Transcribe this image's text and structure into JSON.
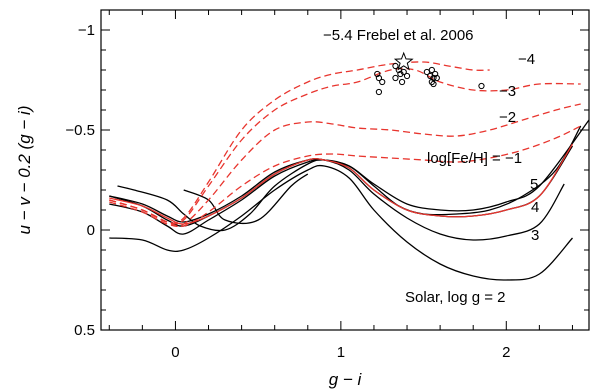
{
  "chart_data": {
    "type": "line",
    "title": "",
    "xlabel": "g − i",
    "ylabel": "u − v − 0.2 (g − i)",
    "xlim": [
      -0.45,
      2.5
    ],
    "ylim": [
      0.5,
      -1.1
    ],
    "y_inverted": true,
    "grid": false,
    "legend": "none",
    "x_ticks": [
      {
        "value": 0,
        "label": "0"
      },
      {
        "value": 1,
        "label": "1"
      },
      {
        "value": 2,
        "label": "2"
      }
    ],
    "y_ticks": [
      {
        "value": -1,
        "label": "−1"
      },
      {
        "value": -0.5,
        "label": "−0.5"
      },
      {
        "value": 0,
        "label": "0"
      },
      {
        "value": 0.5,
        "label": "0.5"
      }
    ],
    "colors": {
      "solar": "#000000",
      "metal_poor": "#e8352e",
      "stars": "#000000"
    },
    "series": [
      {
        "group": "solar",
        "style": "solid",
        "color": "#000000",
        "x": [
          -0.4,
          -0.2,
          -0.05,
          0.05,
          0.2,
          0.4,
          0.6,
          0.8,
          0.9,
          1.05,
          1.2,
          1.4,
          1.6,
          1.8,
          2.0,
          2.2,
          2.4
        ],
        "y": [
          0.04,
          0.05,
          0.1,
          0.1,
          0.04,
          -0.07,
          -0.2,
          -0.3,
          -0.32,
          -0.26,
          -0.1,
          0.06,
          0.17,
          0.23,
          0.25,
          0.22,
          0.04
        ]
      },
      {
        "group": "solar",
        "style": "solid",
        "color": "#000000",
        "x": [
          -0.4,
          -0.2,
          -0.05,
          0.05,
          0.2,
          0.4,
          0.6,
          0.8,
          0.9,
          1.05,
          1.2,
          1.4,
          1.6,
          1.8,
          2.0,
          2.2,
          2.35
        ],
        "y": [
          -0.13,
          -0.09,
          -0.02,
          0.02,
          -0.05,
          -0.15,
          -0.27,
          -0.34,
          -0.35,
          -0.3,
          -0.18,
          -0.06,
          0.02,
          0.05,
          0.03,
          -0.03,
          -0.23
        ]
      },
      {
        "group": "solar",
        "style": "solid",
        "color": "#000000",
        "x": [
          -0.4,
          -0.2,
          -0.05,
          0.05,
          0.2,
          0.4,
          0.6,
          0.8,
          0.9,
          1.05,
          1.2,
          1.4,
          1.6,
          1.8,
          2.0,
          2.2,
          2.4
        ],
        "y": [
          -0.17,
          -0.12,
          -0.05,
          -0.02,
          -0.07,
          -0.16,
          -0.28,
          -0.35,
          -0.35,
          -0.31,
          -0.2,
          -0.1,
          -0.07,
          -0.07,
          -0.1,
          -0.17,
          -0.42
        ]
      },
      {
        "group": "solar",
        "style": "solid",
        "color": "#000000",
        "x": [
          -0.4,
          -0.2,
          -0.05,
          0.05,
          0.2,
          0.4,
          0.6,
          0.8,
          0.9,
          1.05,
          1.2,
          1.4,
          1.6,
          1.8,
          2.0,
          2.2,
          2.5
        ],
        "y": [
          -0.17,
          -0.13,
          -0.07,
          -0.04,
          -0.08,
          -0.17,
          -0.29,
          -0.35,
          -0.35,
          -0.32,
          -0.23,
          -0.13,
          -0.1,
          -0.1,
          -0.14,
          -0.22,
          -0.55
        ]
      },
      {
        "group": "solar",
        "style": "solid",
        "color": "#000000",
        "x": [
          -0.35,
          -0.25,
          -0.05,
          0.05,
          0.15,
          0.3,
          0.45,
          0.6,
          0.8,
          0.9,
          1.05,
          1.2,
          1.35,
          1.5,
          1.7,
          1.9,
          2.1,
          2.3,
          2.45
        ],
        "y": [
          -0.22,
          -0.2,
          -0.15,
          -0.08,
          -0.02,
          0.0,
          -0.08,
          -0.22,
          -0.33,
          -0.35,
          -0.32,
          -0.22,
          -0.12,
          -0.08,
          -0.08,
          -0.1,
          -0.17,
          -0.3,
          -0.52
        ]
      },
      {
        "group": "solar",
        "style": "solid",
        "color": "#000000",
        "x": [
          0.05,
          0.2,
          0.3,
          0.5,
          0.7,
          0.8
        ],
        "y": [
          -0.2,
          -0.15,
          -0.05,
          -0.05,
          -0.22,
          -0.28
        ]
      },
      {
        "group": "metal_poor",
        "style": "solid",
        "color": "#e8352e",
        "x": [
          -0.4,
          -0.2,
          -0.05,
          0.05,
          0.2,
          0.4,
          0.6,
          0.8,
          0.9,
          1.05,
          1.2,
          1.4,
          1.6,
          1.8,
          2.0,
          2.2,
          2.4
        ],
        "y": [
          -0.16,
          -0.12,
          -0.06,
          -0.03,
          -0.07,
          -0.16,
          -0.28,
          -0.35,
          -0.35,
          -0.31,
          -0.2,
          -0.1,
          -0.07,
          -0.07,
          -0.1,
          -0.17,
          -0.43
        ]
      },
      {
        "group": "metal_poor",
        "style": "dashed",
        "color": "#e8352e",
        "name": "−1",
        "x": [
          -0.4,
          -0.2,
          -0.05,
          0.05,
          0.2,
          0.4,
          0.6,
          0.8,
          0.95,
          1.1,
          1.3,
          1.5,
          1.7,
          1.9,
          2.1,
          2.3,
          2.45
        ],
        "y": [
          -0.15,
          -0.1,
          -0.04,
          -0.02,
          -0.09,
          -0.22,
          -0.32,
          -0.37,
          -0.38,
          -0.37,
          -0.36,
          -0.35,
          -0.34,
          -0.36,
          -0.4,
          -0.46,
          -0.52
        ]
      },
      {
        "group": "metal_poor",
        "style": "dashed",
        "color": "#e8352e",
        "name": "−2",
        "x": [
          -0.4,
          -0.2,
          -0.05,
          0.05,
          0.2,
          0.4,
          0.6,
          0.8,
          0.95,
          1.1,
          1.3,
          1.5,
          1.7,
          1.9,
          2.1,
          2.3,
          2.45
        ],
        "y": [
          -0.14,
          -0.09,
          -0.03,
          -0.03,
          -0.15,
          -0.35,
          -0.5,
          -0.54,
          -0.53,
          -0.51,
          -0.5,
          -0.48,
          -0.47,
          -0.5,
          -0.55,
          -0.6,
          -0.63
        ]
      },
      {
        "group": "metal_poor",
        "style": "dashed",
        "color": "#e8352e",
        "name": "−3",
        "x": [
          -0.4,
          -0.2,
          -0.05,
          0.05,
          0.2,
          0.4,
          0.6,
          0.8,
          0.95,
          1.1,
          1.3,
          1.45,
          1.6,
          1.8,
          2.0,
          2.2,
          2.45
        ],
        "y": [
          -0.15,
          -0.1,
          -0.04,
          -0.05,
          -0.22,
          -0.45,
          -0.6,
          -0.68,
          -0.72,
          -0.74,
          -0.8,
          -0.8,
          -0.74,
          -0.7,
          -0.7,
          -0.73,
          -0.73
        ]
      },
      {
        "group": "metal_poor",
        "style": "dashed",
        "color": "#e8352e",
        "name": "−4",
        "x": [
          -0.4,
          -0.2,
          -0.05,
          0.05,
          0.2,
          0.4,
          0.6,
          0.8,
          0.95,
          1.1,
          1.3,
          1.5,
          1.65,
          1.8,
          1.9
        ],
        "y": [
          -0.15,
          -0.1,
          -0.04,
          -0.06,
          -0.24,
          -0.5,
          -0.65,
          -0.74,
          -0.78,
          -0.8,
          -0.83,
          -0.84,
          -0.82,
          -0.8,
          -0.8
        ]
      }
    ],
    "stars": {
      "x": [
        1.22,
        1.23,
        1.25,
        1.33,
        1.35,
        1.36,
        1.38,
        1.4,
        1.33,
        1.37,
        1.52,
        1.54,
        1.55,
        1.56,
        1.57,
        1.58,
        1.55,
        1.56,
        1.23,
        1.85
      ],
      "y": [
        -0.78,
        -0.76,
        -0.74,
        -0.82,
        -0.8,
        -0.78,
        -0.79,
        -0.77,
        -0.76,
        -0.74,
        -0.79,
        -0.77,
        -0.8,
        -0.76,
        -0.78,
        -0.76,
        -0.74,
        -0.73,
        -0.69,
        -0.72
      ]
    },
    "highlight_star": {
      "x": 1.38,
      "y": -0.84,
      "label": "−5.4 Frebel et al. 2006"
    },
    "annotations": {
      "metal_minus4": "−4",
      "metal_minus3": "−3",
      "metal_minus2": "−2",
      "metal_minus1": "log[Fe/H] = −1",
      "logg5": "5",
      "logg4": "4",
      "logg3": "3",
      "solar_logg2": "Solar, log g = 2"
    }
  }
}
